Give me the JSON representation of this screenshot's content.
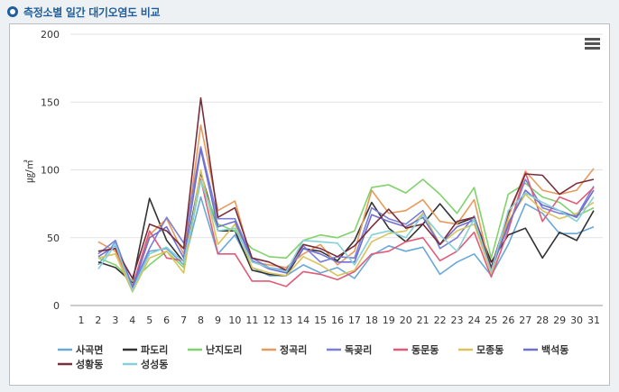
{
  "header": {
    "title": "측정소별 일간 대기오염도 비교"
  },
  "menu": {
    "icon": "hamburger-menu-icon"
  },
  "chart_data": {
    "type": "line",
    "title": "",
    "xlabel": "",
    "ylabel": "㎍/㎥",
    "ylim": [
      0,
      200
    ],
    "yticks": [
      0,
      50,
      100,
      150,
      200
    ],
    "grid": true,
    "legend_position": "bottom",
    "x": [
      "1",
      "2",
      "3",
      "4",
      "5",
      "6",
      "7",
      "8",
      "9",
      "10",
      "11",
      "12",
      "13",
      "14",
      "15",
      "16",
      "17",
      "18",
      "19",
      "20",
      "21",
      "22",
      "23",
      "24",
      "25",
      "26",
      "27",
      "28",
      "29",
      "30",
      "31"
    ],
    "series": [
      {
        "name": "사곡면",
        "color": "#6aa8d8",
        "values": [
          null,
          30,
          47,
          12,
          40,
          42,
          30,
          80,
          38,
          52,
          28,
          22,
          22,
          30,
          24,
          28,
          20,
          37,
          44,
          40,
          43,
          23,
          32,
          38,
          22,
          45,
          75,
          68,
          53,
          53,
          58
        ]
      },
      {
        "name": "파도리",
        "color": "#333333",
        "values": [
          null,
          32,
          28,
          17,
          79,
          48,
          32,
          98,
          55,
          55,
          26,
          23,
          22,
          42,
          40,
          33,
          48,
          76,
          57,
          47,
          60,
          75,
          60,
          65,
          32,
          52,
          57,
          35,
          54,
          48,
          70
        ]
      },
      {
        "name": "난지도리",
        "color": "#7fd36a",
        "values": [
          null,
          35,
          30,
          18,
          30,
          40,
          28,
          92,
          60,
          55,
          42,
          36,
          35,
          48,
          52,
          50,
          55,
          87,
          89,
          83,
          93,
          82,
          68,
          87,
          35,
          82,
          90,
          80,
          76,
          66,
          72
        ]
      },
      {
        "name": "정곡리",
        "color": "#e89a5c",
        "values": [
          null,
          47,
          40,
          12,
          52,
          64,
          38,
          133,
          70,
          77,
          32,
          30,
          28,
          38,
          45,
          30,
          40,
          85,
          68,
          70,
          78,
          62,
          60,
          78,
          25,
          65,
          99,
          85,
          82,
          85,
          101
        ]
      },
      {
        "name": "독곶리",
        "color": "#7b7fd6",
        "values": [
          null,
          38,
          48,
          14,
          42,
          65,
          46,
          117,
          64,
          64,
          35,
          28,
          26,
          44,
          32,
          36,
          35,
          72,
          64,
          60,
          70,
          42,
          50,
          66,
          28,
          58,
          93,
          72,
          68,
          66,
          88
        ]
      },
      {
        "name": "동문동",
        "color": "#e05b78",
        "values": [
          null,
          40,
          42,
          14,
          55,
          35,
          33,
          93,
          38,
          38,
          18,
          18,
          14,
          25,
          23,
          19,
          25,
          38,
          40,
          47,
          50,
          33,
          40,
          54,
          21,
          55,
          98,
          62,
          80,
          75,
          87
        ]
      },
      {
        "name": "모종동",
        "color": "#d9c35a",
        "values": [
          null,
          35,
          38,
          10,
          35,
          40,
          24,
          100,
          45,
          60,
          28,
          24,
          22,
          36,
          30,
          22,
          26,
          47,
          53,
          55,
          68,
          45,
          55,
          60,
          24,
          62,
          82,
          70,
          64,
          68,
          76
        ]
      },
      {
        "name": "백석동",
        "color": "#6f6fd0",
        "values": [
          null,
          36,
          44,
          13,
          50,
          58,
          35,
          115,
          58,
          62,
          33,
          27,
          24,
          42,
          38,
          32,
          32,
          67,
          62,
          58,
          65,
          45,
          58,
          63,
          26,
          60,
          85,
          74,
          70,
          65,
          85
        ]
      },
      {
        "name": "성황동",
        "color": "#7a2e3b",
        "values": [
          null,
          40,
          42,
          20,
          60,
          55,
          42,
          153,
          65,
          72,
          35,
          32,
          26,
          45,
          42,
          36,
          44,
          58,
          71,
          57,
          60,
          45,
          62,
          65,
          28,
          68,
          97,
          96,
          82,
          90,
          93
        ]
      },
      {
        "name": "성성동",
        "color": "#86d1d8",
        "values": [
          null,
          27,
          45,
          11,
          38,
          43,
          32,
          92,
          55,
          57,
          32,
          28,
          25,
          48,
          47,
          46,
          30,
          52,
          55,
          50,
          67,
          52,
          40,
          64,
          25,
          70,
          83,
          76,
          70,
          62,
          80
        ]
      }
    ]
  }
}
